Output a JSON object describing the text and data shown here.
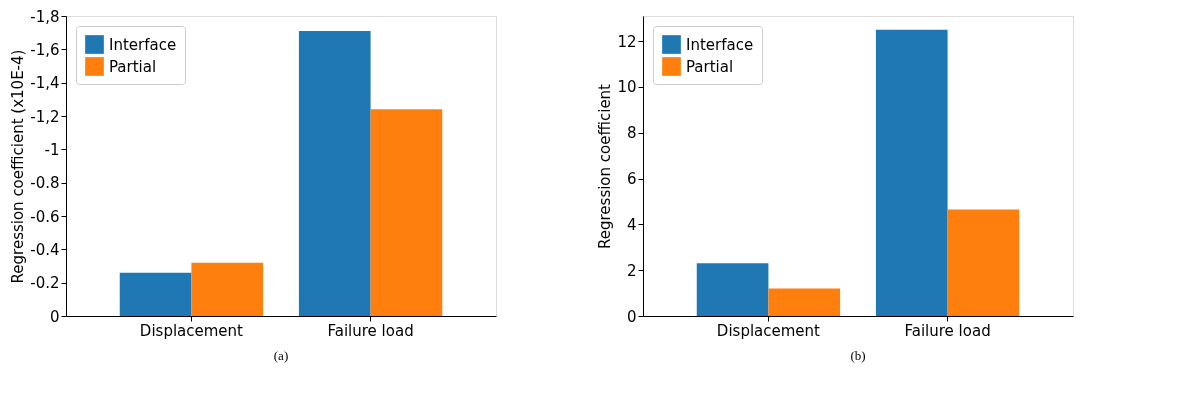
{
  "chart_data": [
    {
      "type": "bar",
      "ylabel": "Regression coefficient (x10E-4)",
      "categories": [
        "Displacement",
        "Failure load"
      ],
      "series": [
        {
          "name": "Interface",
          "color": "#1f77b4",
          "values": [
            -0.26,
            -1.71
          ]
        },
        {
          "name": "Partial",
          "color": "#ff7f0e",
          "values": [
            -0.32,
            -1.24
          ]
        }
      ],
      "ylim": [
        0,
        -1.8
      ],
      "yticks": [
        0,
        -0.2,
        -0.4,
        -0.6,
        -0.8,
        -1,
        {
          "value": -1.2,
          "label": "-1,2"
        },
        {
          "value": -1.4,
          "label": "-1,4"
        },
        {
          "value": -1.6,
          "label": "-1,6"
        },
        {
          "value": -1.8,
          "label": "-1,8"
        }
      ],
      "grid": false,
      "legend": "top left",
      "annotations": [
        "(a)"
      ]
    },
    {
      "type": "bar",
      "ylabel": "Regression coefficient",
      "categories": [
        "Displacement",
        "Failure load"
      ],
      "series": [
        {
          "name": "Interface",
          "color": "#1f77b4",
          "values": [
            2.3,
            12.5
          ]
        },
        {
          "name": "Partial",
          "color": "#ff7f0e",
          "values": [
            1.2,
            4.65
          ]
        }
      ],
      "ylim": [
        0,
        13.1
      ],
      "yticks": [
        0,
        2,
        4,
        6,
        8,
        10,
        12
      ],
      "grid": false,
      "legend": "top left",
      "annotations": [
        "(b)"
      ]
    }
  ]
}
